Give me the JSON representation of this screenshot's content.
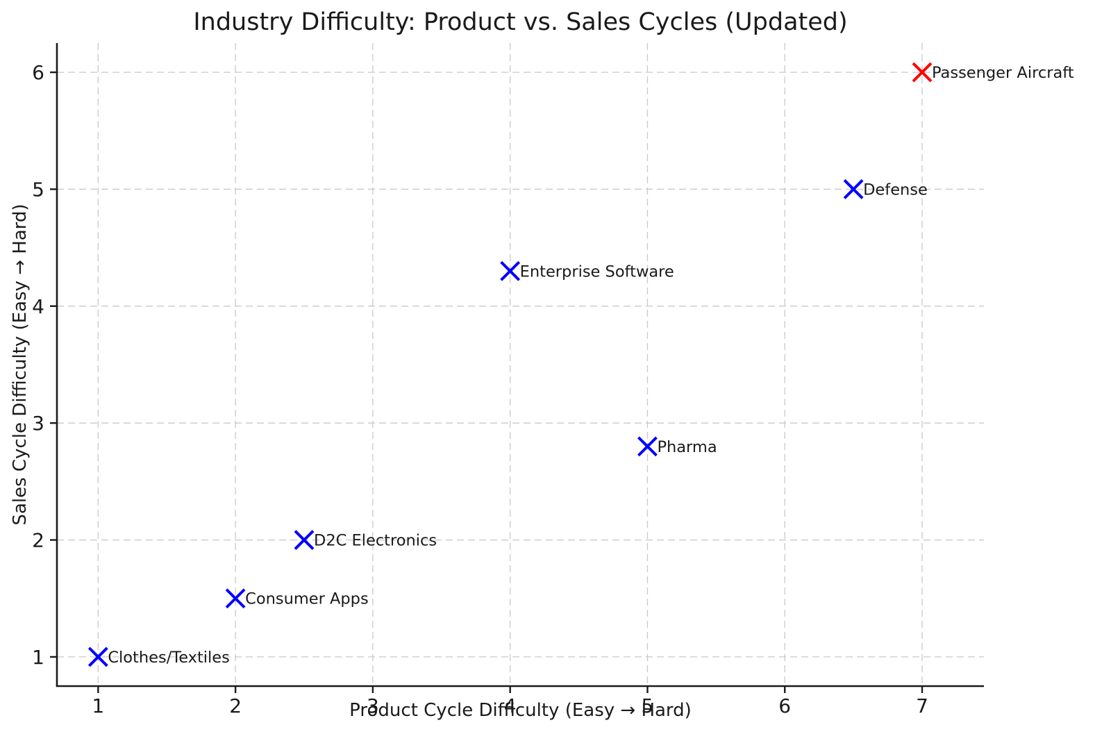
{
  "figure": {
    "background": "#ffffff",
    "title": "Industry Difficulty: Product vs. Sales Cycles (Updated)"
  },
  "chart_data": {
    "type": "scatter",
    "title": "Industry Difficulty: Product vs. Sales Cycles (Updated)",
    "xlabel": "Product Cycle Difficulty (Easy → Hard)",
    "ylabel": "Sales Cycle Difficulty (Easy → Hard)",
    "xlim": [
      0.7,
      7.45
    ],
    "ylim": [
      0.75,
      6.25
    ],
    "x_ticks": [
      1,
      2,
      3,
      4,
      5,
      6,
      7
    ],
    "y_ticks": [
      1,
      2,
      3,
      4,
      5,
      6
    ],
    "grid": "dashed",
    "legend": "none",
    "marker": "x",
    "points": [
      {
        "label": "Clothes/Textiles",
        "x": 1,
        "y": 1,
        "color": "#0000ff"
      },
      {
        "label": "Consumer Apps",
        "x": 2,
        "y": 1.5,
        "color": "#0000ff"
      },
      {
        "label": "D2C Electronics",
        "x": 2.5,
        "y": 2,
        "color": "#0000ff"
      },
      {
        "label": "Enterprise Software",
        "x": 4,
        "y": 4.3,
        "color": "#0000ff"
      },
      {
        "label": "Pharma",
        "x": 5,
        "y": 2.8,
        "color": "#0000ff"
      },
      {
        "label": "Defense",
        "x": 6.5,
        "y": 5,
        "color": "#0000ff"
      },
      {
        "label": "Passenger Aircraft",
        "x": 7,
        "y": 6,
        "color": "#ff0000"
      }
    ],
    "colors": {
      "default_marker": "#0000ff",
      "highlight_marker": "#ff0000",
      "grid": "#c9c9c9",
      "spine": "#1a1a1a",
      "tick_text": "#1a1a1a",
      "label_text": "#1a1a1a"
    }
  }
}
